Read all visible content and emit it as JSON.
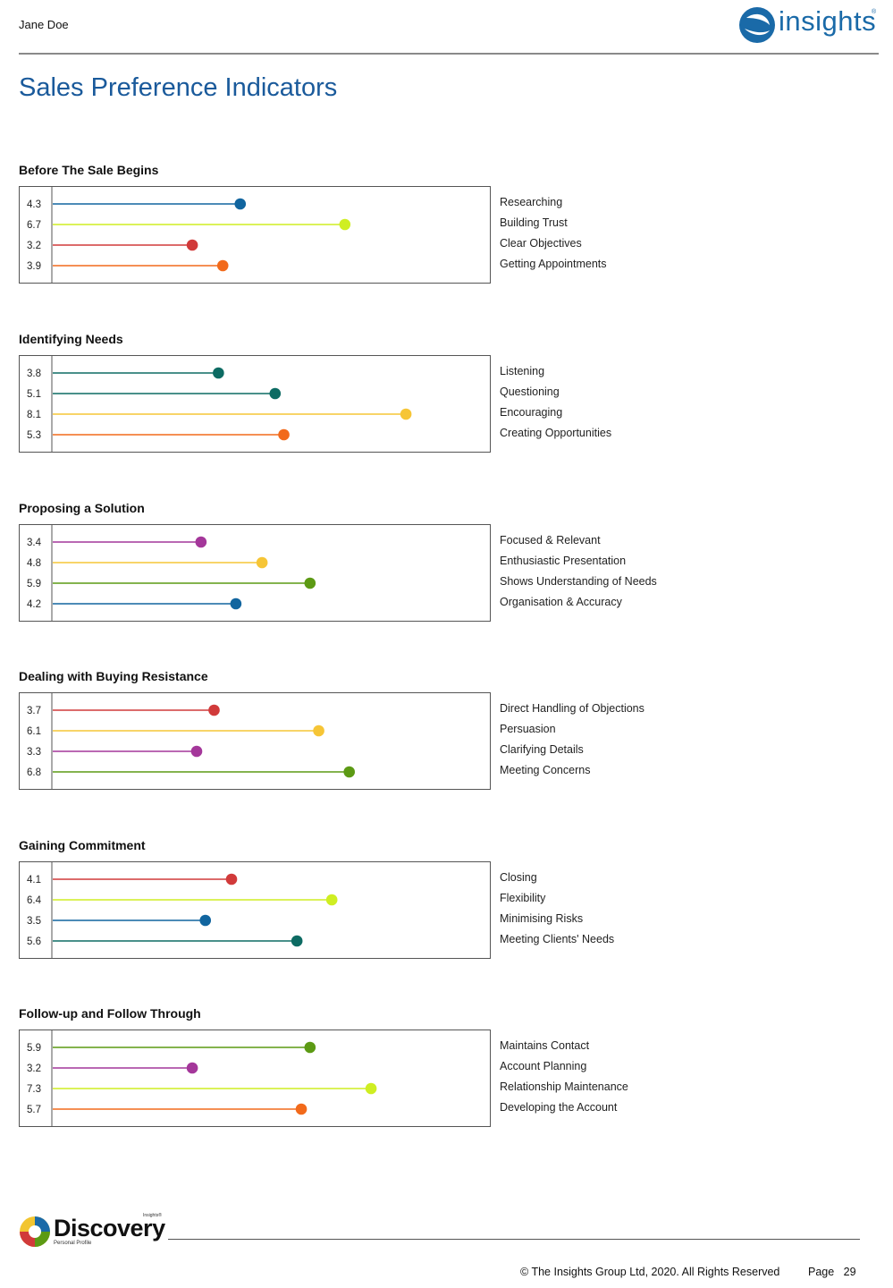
{
  "header": {
    "name": "Jane Doe",
    "brand": "insights",
    "brand_mark": "®"
  },
  "page_title": "Sales Preference Indicators",
  "colors": {
    "blue": "#11659f",
    "lime": "#cfee22",
    "red": "#d13a3a",
    "orange": "#f26a1b",
    "teal": "#0d6b63",
    "yellow": "#f6c536",
    "purple": "#a4379a",
    "green": "#5c9a14",
    "title": "#1a5a9b"
  },
  "chart_data": [
    {
      "type": "lollipop",
      "title": "Before The Sale Begins",
      "xlim": [
        0,
        10
      ],
      "rows": [
        {
          "label": "Researching",
          "value": 4.3,
          "display": "4.3",
          "color": "#11659f"
        },
        {
          "label": "Building Trust",
          "value": 6.7,
          "display": "6.7",
          "color": "#cfee22"
        },
        {
          "label": "Clear Objectives",
          "value": 3.2,
          "display": "3.2",
          "color": "#d13a3a"
        },
        {
          "label": "Getting Appointments",
          "value": 3.9,
          "display": "3.9",
          "color": "#f26a1b"
        }
      ]
    },
    {
      "type": "lollipop",
      "title": "Identifying Needs",
      "xlim": [
        0,
        10
      ],
      "rows": [
        {
          "label": "Listening",
          "value": 3.8,
          "display": "3.8",
          "color": "#0d6b63"
        },
        {
          "label": "Questioning",
          "value": 5.1,
          "display": "5.1",
          "color": "#0d6b63"
        },
        {
          "label": "Encouraging",
          "value": 8.1,
          "display": "8.1",
          "color": "#f6c536"
        },
        {
          "label": "Creating Opportunities",
          "value": 5.3,
          "display": "5.3",
          "color": "#f26a1b"
        }
      ]
    },
    {
      "type": "lollipop",
      "title": "Proposing a Solution",
      "xlim": [
        0,
        10
      ],
      "rows": [
        {
          "label": "Focused & Relevant",
          "value": 3.4,
          "display": "3.4",
          "color": "#a4379a"
        },
        {
          "label": "Enthusiastic Presentation",
          "value": 4.8,
          "display": "4.8",
          "color": "#f6c536"
        },
        {
          "label": "Shows Understanding of Needs",
          "value": 5.9,
          "display": "5.9",
          "color": "#5c9a14"
        },
        {
          "label": "Organisation & Accuracy",
          "value": 4.2,
          "display": "4.2",
          "color": "#11659f"
        }
      ]
    },
    {
      "type": "lollipop",
      "title": "Dealing with Buying Resistance",
      "xlim": [
        0,
        10
      ],
      "rows": [
        {
          "label": "Direct Handling of Objections",
          "value": 3.7,
          "display": "3.7",
          "color": "#d13a3a"
        },
        {
          "label": "Persuasion",
          "value": 6.1,
          "display": "6.1",
          "color": "#f6c536"
        },
        {
          "label": "Clarifying Details",
          "value": 3.3,
          "display": "3.3",
          "color": "#a4379a"
        },
        {
          "label": "Meeting Concerns",
          "value": 6.8,
          "display": "6.8",
          "color": "#5c9a14"
        }
      ]
    },
    {
      "type": "lollipop",
      "title": "Gaining Commitment",
      "xlim": [
        0,
        10
      ],
      "rows": [
        {
          "label": "Closing",
          "value": 4.1,
          "display": "4.1",
          "color": "#d13a3a"
        },
        {
          "label": "Flexibility",
          "value": 6.4,
          "display": "6.4",
          "color": "#cfee22"
        },
        {
          "label": "Minimising Risks",
          "value": 3.5,
          "display": "3.5",
          "color": "#11659f"
        },
        {
          "label": "Meeting Clients' Needs",
          "value": 5.6,
          "display": "5.6",
          "color": "#0d6b63"
        }
      ]
    },
    {
      "type": "lollipop",
      "title": "Follow-up and Follow Through",
      "xlim": [
        0,
        10
      ],
      "rows": [
        {
          "label": "Maintains Contact",
          "value": 5.9,
          "display": "5.9",
          "color": "#5c9a14"
        },
        {
          "label": "Account Planning",
          "value": 3.2,
          "display": "3.2",
          "color": "#a4379a"
        },
        {
          "label": "Relationship Maintenance",
          "value": 7.3,
          "display": "7.3",
          "color": "#cfee22"
        },
        {
          "label": "Developing the Account",
          "value": 5.7,
          "display": "5.7",
          "color": "#f26a1b"
        }
      ]
    }
  ],
  "footer": {
    "brand": "Discovery",
    "brand_sub": "Personal Profile",
    "brand_tm": "Insights®",
    "copyright": "© The Insights Group Ltd, 2020. All Rights Reserved",
    "page_label": "Page",
    "page_number": "29"
  }
}
